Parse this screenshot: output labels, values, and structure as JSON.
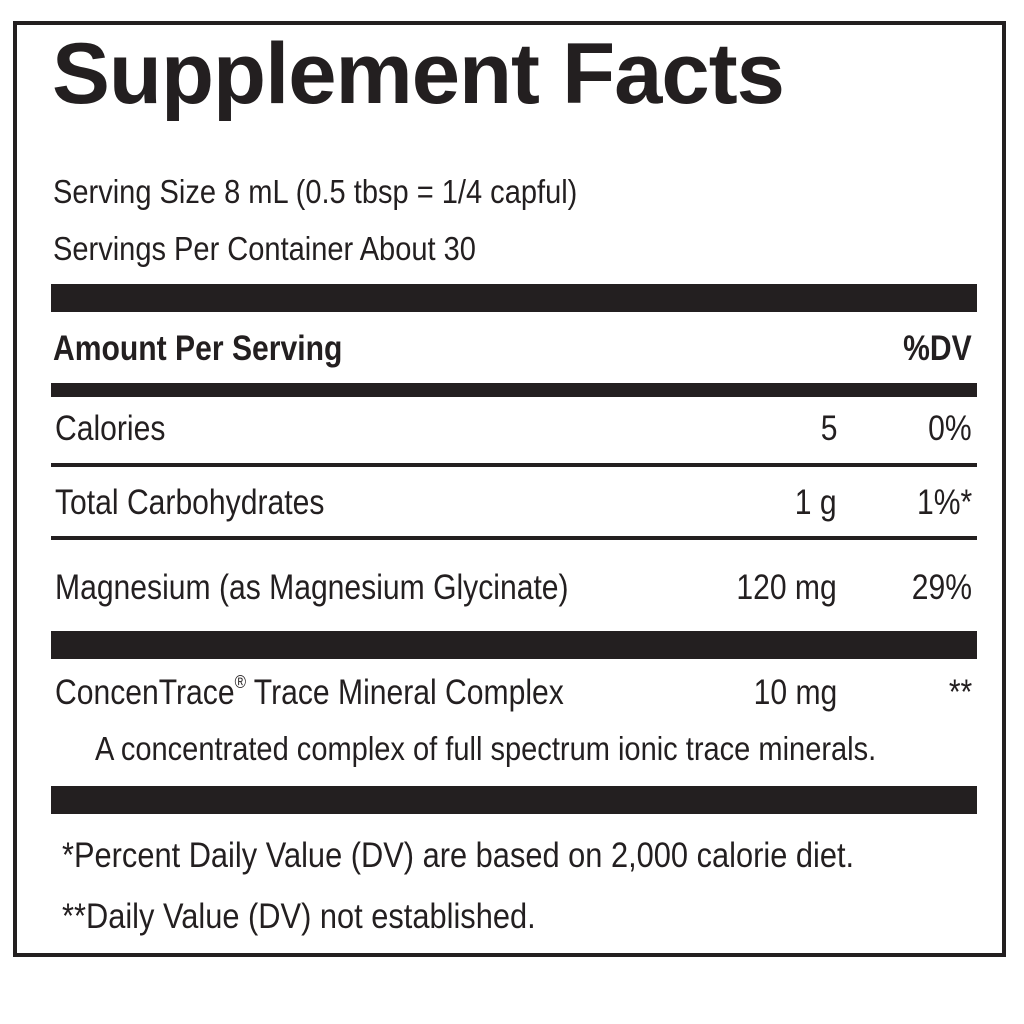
{
  "label": {
    "title": "Supplement Facts",
    "serving_size": "Serving Size 8 mL (0.5 tbsp = 1/4 capful)",
    "servings_per_container": "Servings Per Container About 30",
    "header": {
      "amount_label": "Amount Per Serving",
      "dv_label": "%DV"
    },
    "rows": [
      {
        "name": "Calories",
        "amount": "5",
        "dv": "0%"
      },
      {
        "name": "Total Carbohydrates",
        "amount": "1 g",
        "dv": "1%*"
      },
      {
        "name": "Magnesium (as Magnesium Glycinate)",
        "amount": "120 mg",
        "dv": "29%"
      }
    ],
    "complex": {
      "name": "ConcenTrace",
      "trademark": "®",
      "name_suffix": " Trace Mineral Complex",
      "amount": "10 mg",
      "dv": "**",
      "description": "A concentrated complex of full spectrum ionic trace minerals."
    },
    "footnotes": [
      "*Percent Daily Value (DV) are based on 2,000 calorie diet.",
      "**Daily Value (DV) not established."
    ]
  },
  "colors": {
    "ink": "#231f20",
    "background": "#ffffff"
  }
}
